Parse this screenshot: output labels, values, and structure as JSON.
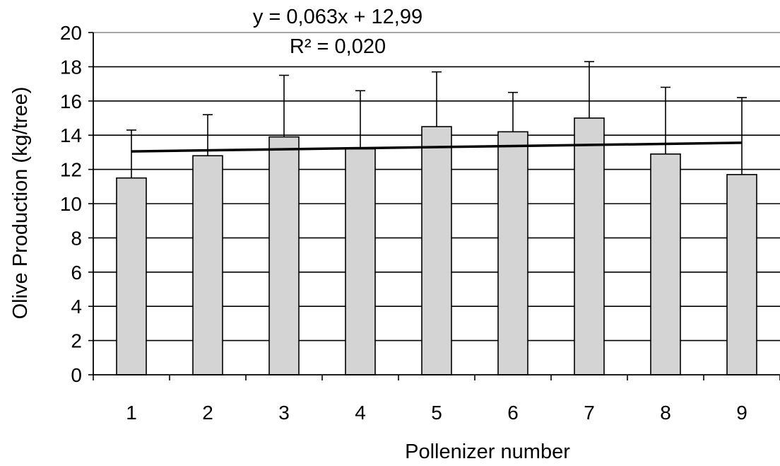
{
  "chart_data": {
    "type": "bar",
    "categories": [
      "1",
      "2",
      "3",
      "4",
      "5",
      "6",
      "7",
      "8",
      "9"
    ],
    "values": [
      11.5,
      12.8,
      13.9,
      13.2,
      14.5,
      14.2,
      15.0,
      12.9,
      11.7
    ],
    "error_plus": [
      2.8,
      2.4,
      3.6,
      3.4,
      3.2,
      2.3,
      3.3,
      3.9,
      4.5
    ],
    "xlabel": "Pollenizer number",
    "ylabel": "Olive Production  (kg/tree)",
    "ylim": [
      0,
      20
    ],
    "yticks": [
      0,
      2,
      4,
      6,
      8,
      10,
      12,
      14,
      16,
      18,
      20
    ],
    "grid": true,
    "bar_color": "#d4d4d4",
    "trendline": {
      "type": "linear",
      "slope": 0.063,
      "intercept": 12.99,
      "equation": "y = 0,063x  + 12,99",
      "r_squared": "R² = 0,020"
    }
  }
}
